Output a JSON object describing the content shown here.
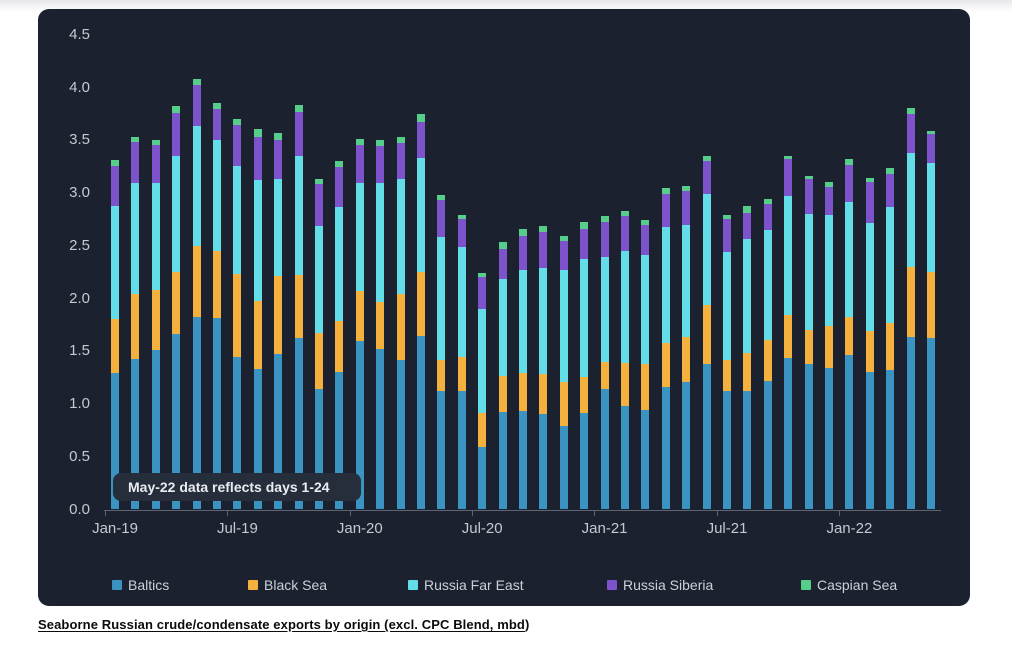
{
  "page": {
    "background": "#ffffff",
    "card_background": "#1b212e",
    "axis_text_color": "#c4c9d2",
    "axis_line_color": "#5d6473"
  },
  "annotation": {
    "text": "May-22 data reflects days 1-24",
    "background": "#272e3b",
    "text_color": "#e9ecf1"
  },
  "caption": {
    "text_underlined": "Seaborne Russian crude/condensate exports by origin (excl. CPC Blend, mbd",
    "text_tail": ")"
  },
  "chart_data": {
    "type": "bar",
    "stacked": true,
    "title": "",
    "xlabel": "",
    "ylabel": "",
    "ylim": [
      0,
      4.5
    ],
    "ytick_step": 0.5,
    "ytick_labels": [
      "0.0",
      "0.5",
      "1.0",
      "1.5",
      "2.0",
      "2.5",
      "3.0",
      "3.5",
      "4.0",
      "4.5"
    ],
    "xtick_labels_shown": [
      "Jan-19",
      "Jul-19",
      "Jan-20",
      "Jul-20",
      "Jan-21",
      "Jul-21",
      "Jan-22"
    ],
    "xtick_indices": [
      0,
      6,
      12,
      18,
      24,
      30,
      36
    ],
    "grid": false,
    "legend_position": "bottom",
    "categories": [
      "Jan-19",
      "Feb-19",
      "Mar-19",
      "Apr-19",
      "May-19",
      "Jun-19",
      "Jul-19",
      "Aug-19",
      "Sep-19",
      "Oct-19",
      "Nov-19",
      "Dec-19",
      "Jan-20",
      "Feb-20",
      "Mar-20",
      "Apr-20",
      "May-20",
      "Jun-20",
      "Jul-20",
      "Aug-20",
      "Sep-20",
      "Oct-20",
      "Nov-20",
      "Dec-20",
      "Jan-21",
      "Feb-21",
      "Mar-21",
      "Apr-21",
      "May-21",
      "Jun-21",
      "Jul-21",
      "Aug-21",
      "Sep-21",
      "Oct-21",
      "Nov-21",
      "Dec-21",
      "Jan-22",
      "Feb-22",
      "Mar-22",
      "Apr-22",
      "May-22"
    ],
    "series": [
      {
        "name": "Baltics",
        "color": "#3b93c1",
        "values": [
          1.29,
          1.42,
          1.51,
          1.66,
          1.82,
          1.81,
          1.44,
          1.33,
          1.47,
          1.62,
          1.14,
          1.3,
          1.59,
          1.52,
          1.41,
          1.64,
          1.12,
          1.12,
          0.59,
          0.92,
          0.93,
          0.9,
          0.79,
          0.91,
          1.14,
          0.98,
          0.94,
          1.16,
          1.2,
          1.37,
          1.12,
          1.12,
          1.21,
          1.43,
          1.37,
          1.34,
          1.46,
          1.3,
          1.32,
          1.63,
          1.62
        ]
      },
      {
        "name": "Black Sea",
        "color": "#f5b13e",
        "values": [
          0.51,
          0.62,
          0.57,
          0.59,
          0.67,
          0.64,
          0.79,
          0.64,
          0.74,
          0.6,
          0.53,
          0.48,
          0.48,
          0.44,
          0.63,
          0.61,
          0.29,
          0.32,
          0.32,
          0.34,
          0.36,
          0.38,
          0.41,
          0.34,
          0.25,
          0.4,
          0.43,
          0.41,
          0.43,
          0.56,
          0.29,
          0.36,
          0.39,
          0.41,
          0.33,
          0.39,
          0.36,
          0.39,
          0.44,
          0.66,
          0.63
        ]
      },
      {
        "name": "Russia Far East",
        "color": "#63dee9",
        "values": [
          1.07,
          1.05,
          1.01,
          1.1,
          1.14,
          1.05,
          1.02,
          1.15,
          0.92,
          1.13,
          1.01,
          1.08,
          1.02,
          1.13,
          1.09,
          1.08,
          1.17,
          1.04,
          0.99,
          0.92,
          0.98,
          1.0,
          1.07,
          1.12,
          1.0,
          1.07,
          1.04,
          1.1,
          1.06,
          1.06,
          1.03,
          1.08,
          1.04,
          1.13,
          1.1,
          1.06,
          1.09,
          1.02,
          1.1,
          1.08,
          1.03
        ]
      },
      {
        "name": "Russia Siberia",
        "color": "#7c53cb",
        "values": [
          0.38,
          0.39,
          0.36,
          0.4,
          0.39,
          0.29,
          0.39,
          0.41,
          0.37,
          0.41,
          0.4,
          0.38,
          0.36,
          0.35,
          0.34,
          0.34,
          0.35,
          0.27,
          0.3,
          0.28,
          0.32,
          0.35,
          0.27,
          0.28,
          0.33,
          0.33,
          0.28,
          0.32,
          0.32,
          0.31,
          0.31,
          0.25,
          0.25,
          0.35,
          0.33,
          0.26,
          0.35,
          0.39,
          0.32,
          0.37,
          0.27
        ]
      },
      {
        "name": "Caspian Sea",
        "color": "#57cd8a",
        "values": [
          0.06,
          0.05,
          0.05,
          0.07,
          0.06,
          0.06,
          0.06,
          0.07,
          0.06,
          0.07,
          0.05,
          0.06,
          0.06,
          0.06,
          0.06,
          0.07,
          0.05,
          0.04,
          0.04,
          0.07,
          0.06,
          0.05,
          0.05,
          0.07,
          0.06,
          0.04,
          0.05,
          0.05,
          0.05,
          0.05,
          0.04,
          0.06,
          0.05,
          0.03,
          0.03,
          0.05,
          0.06,
          0.04,
          0.05,
          0.06,
          0.03
        ]
      }
    ]
  }
}
